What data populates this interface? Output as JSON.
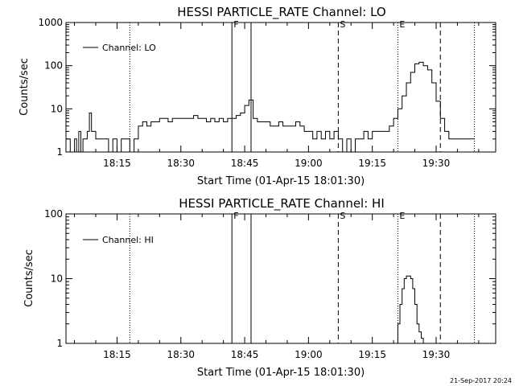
{
  "chart_data": [
    {
      "type": "line",
      "title": "HESSI PARTICLE_RATE Channel: LO",
      "xlabel": "Start Time (01-Apr-15 18:01:30)",
      "ylabel": "Counts/sec",
      "xlim": [
        "18:03",
        "19:44"
      ],
      "ylim": [
        1,
        1000
      ],
      "yscale": "log",
      "x_ticks": [
        "18:15",
        "18:30",
        "18:45",
        "19:00",
        "19:15",
        "19:30"
      ],
      "y_ticks": [
        "1",
        "10",
        "100",
        "1000"
      ],
      "legend": {
        "position": "top-left",
        "label": "Channel: LO"
      },
      "markers": [
        {
          "time": "18:18",
          "style": "dotted",
          "label": ""
        },
        {
          "time": "18:42",
          "style": "solid",
          "label": "F"
        },
        {
          "time": "18:46.5",
          "style": "solid",
          "label": ""
        },
        {
          "time": "19:07",
          "style": "dashed",
          "label": "S"
        },
        {
          "time": "19:21",
          "style": "dotted",
          "label": "E"
        },
        {
          "time": "19:31",
          "style": "dashed",
          "label": ""
        },
        {
          "time": "19:39",
          "style": "dotted",
          "label": ""
        }
      ],
      "series": [
        {
          "x": [
            "18:03",
            "18:04",
            "18:05",
            "18:05.5",
            "18:06",
            "18:06.5",
            "18:07",
            "18:08",
            "18:08.5",
            "18:09",
            "18:10",
            "18:11",
            "18:12",
            "18:13",
            "18:14",
            "18:15",
            "18:16",
            "18:17",
            "18:18",
            "18:19",
            "18:20",
            "18:21",
            "18:22",
            "18:23",
            "18:24",
            "18:25",
            "18:26",
            "18:27",
            "18:28",
            "18:29",
            "18:30",
            "18:31",
            "18:32",
            "18:33",
            "18:34",
            "18:35",
            "18:36",
            "18:37",
            "18:38",
            "18:39",
            "18:40",
            "18:41",
            "18:42",
            "18:43",
            "18:44",
            "18:45",
            "18:46",
            "18:47",
            "18:48",
            "18:49",
            "18:50",
            "18:51",
            "18:52",
            "18:53",
            "18:54",
            "18:55",
            "18:56",
            "18:57",
            "18:58",
            "18:59",
            "19:00",
            "19:01",
            "19:02",
            "19:03",
            "19:04",
            "19:05",
            "19:06",
            "19:07",
            "19:08",
            "19:09",
            "19:10",
            "19:11",
            "19:12",
            "19:13",
            "19:14",
            "19:15",
            "19:16",
            "19:17",
            "19:18",
            "19:19",
            "19:20",
            "19:21",
            "19:22",
            "19:23",
            "19:24",
            "19:25",
            "19:26",
            "19:27",
            "19:28",
            "19:29",
            "19:30",
            "19:31",
            "19:32",
            "19:33",
            "19:34",
            "19:35",
            "19:36",
            "19:37",
            "19:38",
            "19:39"
          ],
          "y": [
            2,
            1,
            2,
            1,
            3,
            1,
            2,
            3,
            8,
            3,
            2,
            2,
            2,
            1,
            2,
            1,
            2,
            2,
            1,
            2,
            4,
            5,
            4,
            5,
            5,
            6,
            6,
            5,
            6,
            6,
            6,
            6,
            6,
            7,
            6,
            6,
            5,
            6,
            5,
            6,
            5,
            6,
            6,
            7,
            8,
            12,
            16,
            6,
            5,
            5,
            5,
            4,
            4,
            5,
            4,
            4,
            4,
            5,
            4,
            3,
            3,
            2,
            3,
            2,
            3,
            2,
            3,
            2,
            1,
            2,
            1,
            2,
            2,
            3,
            2,
            3,
            3,
            3,
            3,
            4,
            6,
            10,
            20,
            40,
            70,
            110,
            120,
            100,
            80,
            40,
            15,
            6,
            3,
            2,
            2,
            2,
            2,
            2,
            2,
            2
          ]
        }
      ]
    },
    {
      "type": "line",
      "title": "HESSI PARTICLE_RATE Channel: HI",
      "xlabel": "Start Time (01-Apr-15 18:01:30)",
      "ylabel": "Counts/sec",
      "xlim": [
        "18:03",
        "19:44"
      ],
      "ylim": [
        1,
        100
      ],
      "yscale": "log",
      "x_ticks": [
        "18:15",
        "18:30",
        "18:45",
        "19:00",
        "19:15",
        "19:30"
      ],
      "y_ticks": [
        "1",
        "10",
        "100"
      ],
      "legend": {
        "position": "top-left",
        "label": "Channel: HI"
      },
      "markers": [
        {
          "time": "18:18",
          "style": "dotted",
          "label": ""
        },
        {
          "time": "18:42",
          "style": "solid",
          "label": "F"
        },
        {
          "time": "18:46.5",
          "style": "solid",
          "label": ""
        },
        {
          "time": "19:07",
          "style": "dashed",
          "label": "S"
        },
        {
          "time": "19:21",
          "style": "dotted",
          "label": "E"
        },
        {
          "time": "19:31",
          "style": "dashed",
          "label": ""
        },
        {
          "time": "19:39",
          "style": "dotted",
          "label": ""
        }
      ],
      "series": [
        {
          "x": [
            "19:20.5",
            "19:21",
            "19:21.5",
            "19:22",
            "19:22.5",
            "19:23",
            "19:23.5",
            "19:24",
            "19:24.5",
            "19:25",
            "19:25.5",
            "19:26",
            "19:26.5",
            "19:27"
          ],
          "y": [
            1,
            2,
            4,
            7,
            10,
            11,
            11,
            10,
            7,
            4,
            2,
            1.5,
            1.2,
            1
          ]
        }
      ]
    }
  ],
  "timestamp": "21-Sep-2017 20:24"
}
